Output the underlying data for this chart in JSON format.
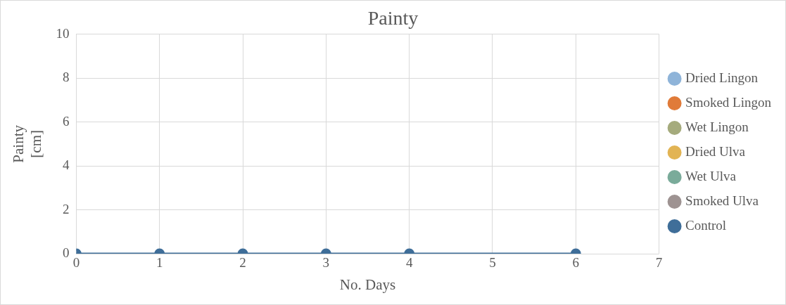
{
  "chart_data": {
    "type": "line",
    "title": "Painty",
    "xlabel": "No. Days",
    "ylabel": "Painty [cm]",
    "x": [
      0,
      1,
      2,
      3,
      4,
      6
    ],
    "xlim": [
      0,
      7
    ],
    "xticks": [
      0,
      1,
      2,
      3,
      4,
      5,
      6,
      7
    ],
    "ylim": [
      0,
      10
    ],
    "yticks": [
      0,
      2,
      4,
      6,
      8,
      10
    ],
    "grid": true,
    "legend": "right",
    "marker": "circle",
    "series": [
      {
        "name": "Dried Lingon",
        "color": "#8fb4d9",
        "values": [
          null,
          null,
          null,
          null,
          null,
          null
        ]
      },
      {
        "name": "Smoked Lingon",
        "color": "#e07b39",
        "values": [
          null,
          null,
          null,
          null,
          null,
          null
        ]
      },
      {
        "name": "Wet Lingon",
        "color": "#a5ab7d",
        "values": [
          null,
          null,
          null,
          null,
          null,
          null
        ]
      },
      {
        "name": "Dried Ulva",
        "color": "#e2b454",
        "values": [
          null,
          null,
          null,
          null,
          null,
          null
        ]
      },
      {
        "name": "Wet Ulva",
        "color": "#7aab9a",
        "values": [
          null,
          null,
          null,
          null,
          null,
          null
        ]
      },
      {
        "name": "Smoked Ulva",
        "color": "#9e9392",
        "values": [
          null,
          null,
          null,
          null,
          null,
          null
        ]
      },
      {
        "name": "Control",
        "color": "#3f6e99",
        "values": [
          0,
          0,
          0,
          0,
          0,
          0
        ]
      }
    ]
  }
}
